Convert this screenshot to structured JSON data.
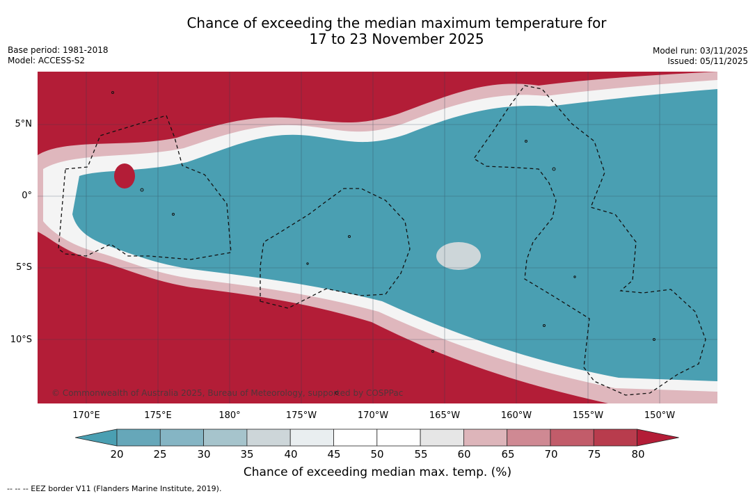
{
  "title_line1": "Chance of exceeding the median maximum temperature for",
  "title_line2": "17 to 23 November 2025",
  "meta_left": {
    "base_period": "Base period: 1981-2018",
    "model": "Model: ACCESS-S2"
  },
  "meta_right": {
    "model_run": "Model run: 03/11/2025",
    "issued": "Issued: 05/11/2025"
  },
  "copyright": "© Commonwealth of Australia 2025, Bureau of Meteorology, supported by COSPPac",
  "lat_ticks": [
    "5°N",
    "0°",
    "5°S",
    "10°S"
  ],
  "lon_ticks": [
    "170°E",
    "175°E",
    "180°",
    "175°W",
    "170°W",
    "165°W",
    "160°W",
    "155°W",
    "150°W"
  ],
  "colorbar": {
    "labels": [
      "20",
      "25",
      "30",
      "35",
      "40",
      "45",
      "50",
      "55",
      "60",
      "65",
      "70",
      "75",
      "80"
    ],
    "colors": [
      "#4a9fb2",
      "#66a7b9",
      "#85b5c4",
      "#a6c4cc",
      "#cdd6d9",
      "#e9eef0",
      "#ffffff",
      "#ffffff",
      "#e6e6e6",
      "#ddb5ba",
      "#cf8993",
      "#c25c6a",
      "#b83c4d",
      "#b31d37"
    ],
    "title": "Chance of exceeding median max. temp. (%)"
  },
  "footnote": "--  --  -- EEZ border V11 (Flanders Marine Institute, 2019)."
}
